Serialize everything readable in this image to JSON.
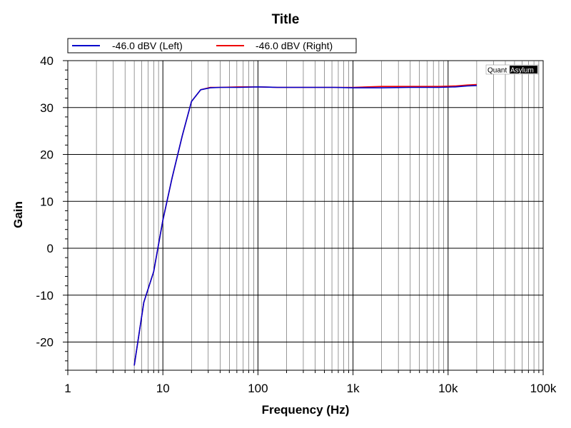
{
  "chart_data": {
    "type": "line",
    "title": "Title",
    "xlabel": "Frequency (Hz)",
    "ylabel": "Gain",
    "x_scale": "log",
    "xlim": [
      1,
      100000
    ],
    "ylim": [
      -26,
      40
    ],
    "x_ticks": [
      {
        "value": 1,
        "label": "1"
      },
      {
        "value": 10,
        "label": "10"
      },
      {
        "value": 100,
        "label": "100"
      },
      {
        "value": 1000,
        "label": "1k"
      },
      {
        "value": 10000,
        "label": "10k"
      },
      {
        "value": 100000,
        "label": "100k"
      }
    ],
    "y_ticks": [
      -20,
      -10,
      0,
      10,
      20,
      30,
      40
    ],
    "grid": true,
    "legend_placement": "top",
    "watermark": {
      "left": "Quant",
      "right": "Asylum"
    },
    "series": [
      {
        "name": "-46.0 dBV (Left)",
        "color": "#0000cc",
        "x": [
          5,
          6.3,
          8,
          10,
          12.5,
          16,
          20,
          25,
          31.5,
          40,
          63,
          100,
          160,
          250,
          400,
          630,
          1000,
          2000,
          4000,
          8000,
          12000,
          16000,
          20000
        ],
        "y": [
          -25,
          -11.5,
          -5,
          6,
          15,
          24,
          31.3,
          33.8,
          34.2,
          34.3,
          34.3,
          34.4,
          34.3,
          34.3,
          34.3,
          34.3,
          34.2,
          34.2,
          34.3,
          34.3,
          34.4,
          34.6,
          34.7
        ]
      },
      {
        "name": "-46.0 dBV (Right)",
        "color": "#ee0000",
        "x": [
          5,
          6.3,
          8,
          10,
          12.5,
          16,
          20,
          25,
          31.5,
          40,
          63,
          100,
          160,
          250,
          400,
          630,
          1000,
          2000,
          4000,
          8000,
          12000,
          16000,
          20000
        ],
        "y": [
          -25,
          -11.5,
          -5,
          6,
          15,
          24,
          31.3,
          33.8,
          34.3,
          34.3,
          34.4,
          34.4,
          34.3,
          34.3,
          34.3,
          34.3,
          34.3,
          34.5,
          34.5,
          34.5,
          34.6,
          34.8,
          34.9
        ]
      }
    ]
  }
}
